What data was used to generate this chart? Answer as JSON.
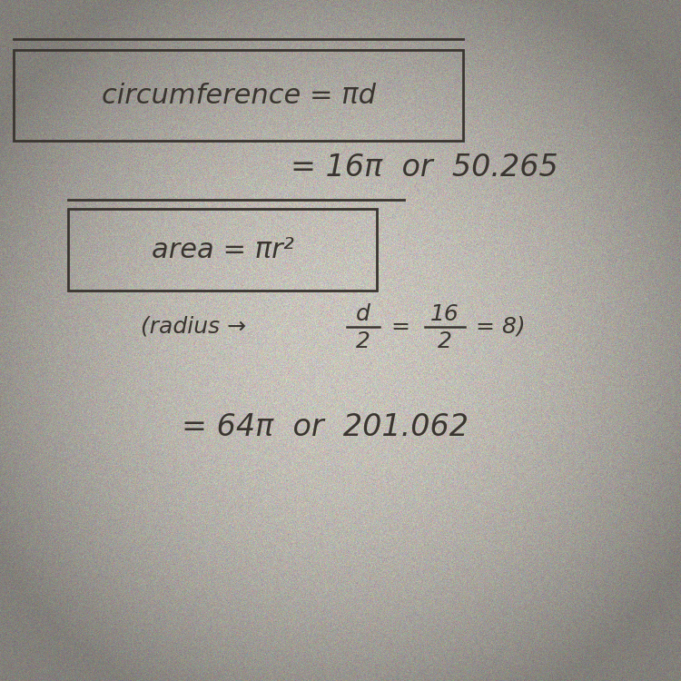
{
  "background_color": "#c8c4bc",
  "text_color": "#3a3530",
  "box1_text": "circumference = πd",
  "line1_text": "= 16π  or  50.265",
  "box2_text": "area = πr²",
  "line2_text": "= 64π  or  201.062",
  "font_size_box": 22,
  "font_size_line": 24,
  "font_size_radius": 18,
  "bg_rgb": [
    200,
    196,
    188
  ],
  "noise_std": 12
}
